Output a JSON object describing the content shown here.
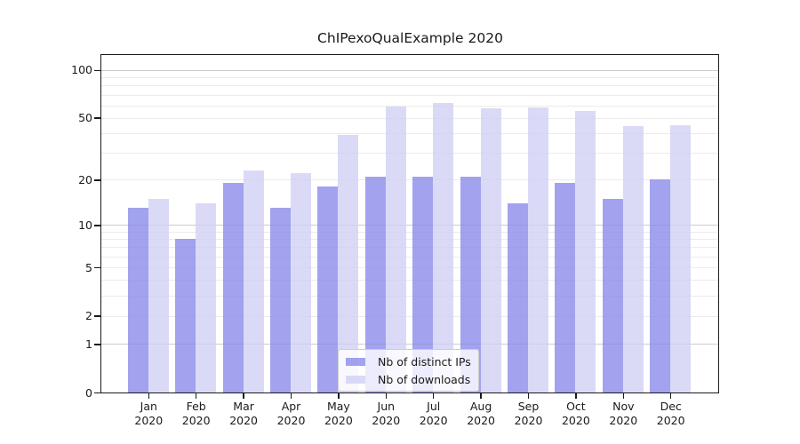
{
  "figure": {
    "title": "ChIPexoQualExample 2020"
  },
  "chart_data": {
    "type": "bar",
    "title": "ChIPexoQualExample 2020",
    "categories": [
      "Jan",
      "Feb",
      "Mar",
      "Apr",
      "May",
      "Jun",
      "Jul",
      "Aug",
      "Sep",
      "Oct",
      "Nov",
      "Dec"
    ],
    "x_tick_year": "2020",
    "series": [
      {
        "name": "Nb of distinct IPs",
        "color": "#8888ea",
        "opacity": 0.78,
        "values": [
          13,
          8,
          19,
          13,
          18,
          21,
          21,
          21,
          14,
          19,
          15,
          20
        ]
      },
      {
        "name": "Nb of downloads",
        "color": "#cfcff5",
        "opacity": 0.78,
        "values": [
          15,
          14,
          23,
          22,
          39,
          59,
          62,
          57,
          58,
          55,
          44,
          45
        ]
      }
    ],
    "yscale": "log10(value+1)",
    "ylim": [
      0,
      124
    ],
    "yticks": [
      100,
      50,
      20,
      10,
      5,
      2,
      1,
      0
    ],
    "major_gridlines": [
      1,
      10,
      100
    ],
    "minor_gridlines": [
      2,
      3,
      4,
      5,
      6,
      7,
      8,
      9,
      20,
      30,
      40,
      50,
      60,
      70,
      80,
      90
    ],
    "grid_color_major": "#cccccc",
    "grid_color_minor": "#ebebeb",
    "axis_color": "#1a1a1a",
    "legend": {
      "position": "lower center",
      "entries": [
        "Nb of distinct IPs",
        "Nb of downloads"
      ]
    }
  }
}
